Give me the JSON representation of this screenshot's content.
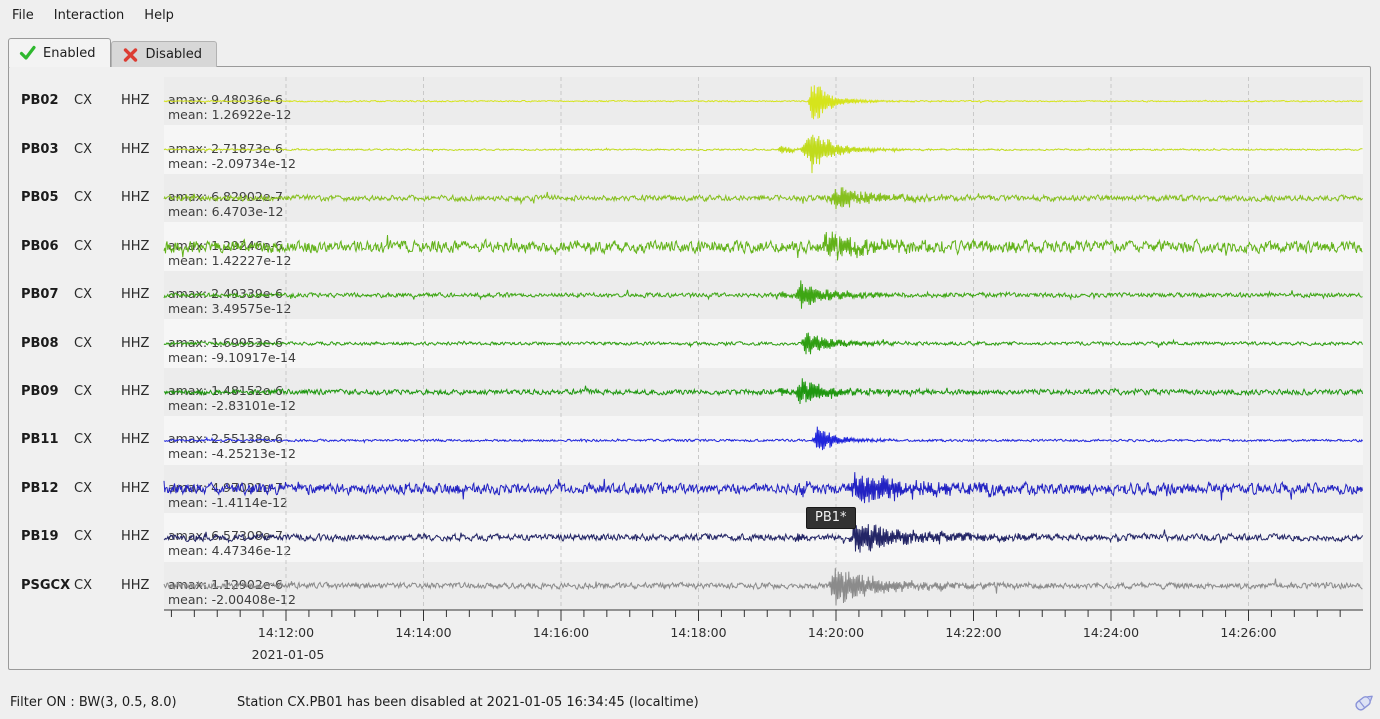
{
  "menubar": {
    "items": [
      "File",
      "Interaction",
      "Help"
    ]
  },
  "tabs": [
    {
      "label": "Enabled",
      "icon": "check-icon",
      "active": true
    },
    {
      "label": "Disabled",
      "icon": "x-icon",
      "active": false
    }
  ],
  "traces": [
    {
      "station": "PB02",
      "network": "CX",
      "channel": "HHZ",
      "amax_label": "amax: 9.48036e-6",
      "mean_label": "mean: 1.26922e-12",
      "color": "#d6e41c",
      "wave": {
        "noise": 0.5,
        "amp": 27,
        "peak": 0.541,
        "rise": 6,
        "decay": 14,
        "coda": 0.06,
        "pre": 0,
        "preoff": 0
      }
    },
    {
      "station": "PB03",
      "network": "CX",
      "channel": "HHZ",
      "amax_label": "amax: 2.71873e-6",
      "mean_label": "mean: -2.09734e-12",
      "color": "#c0db1c",
      "wave": {
        "noise": 0.6,
        "amp": 24,
        "peak": 0.54,
        "rise": 14,
        "decay": 18,
        "coda": 0.08,
        "pre": 0.25,
        "preoff": 30
      }
    },
    {
      "station": "PB05",
      "network": "CX",
      "channel": "HHZ",
      "amax_label": "amax: 6.82902e-7",
      "mean_label": "mean: 6.4703e-12",
      "color": "#86c01e",
      "wave": {
        "noise": 2.2,
        "amp": 12,
        "peak": 0.561,
        "rise": 14,
        "decay": 30,
        "coda": 0.15,
        "pre": 0,
        "preoff": 0
      }
    },
    {
      "station": "PB06",
      "network": "CX",
      "channel": "HHZ",
      "amax_label": "amax: 1.29246e-6",
      "mean_label": "mean: 1.42227e-12",
      "color": "#62b219",
      "wave": {
        "noise": 4.6,
        "amp": 13,
        "peak": 0.555,
        "rise": 20,
        "decay": 35,
        "coda": 0.2,
        "pre": 0,
        "preoff": 0
      }
    },
    {
      "station": "PB07",
      "network": "CX",
      "channel": "HHZ",
      "amax_label": "amax: 2.49339e-6",
      "mean_label": "mean: 3.49575e-12",
      "color": "#3ea614",
      "wave": {
        "noise": 1.7,
        "amp": 14,
        "peak": 0.531,
        "rise": 9,
        "decay": 25,
        "coda": 0.12,
        "pre": 0.3,
        "preoff": 18
      }
    },
    {
      "station": "PB08",
      "network": "CX",
      "channel": "HHZ",
      "amax_label": "amax: 1.69953e-6",
      "mean_label": "mean: -9.10917e-14",
      "color": "#2f9e12",
      "wave": {
        "noise": 1.3,
        "amp": 13,
        "peak": 0.536,
        "rise": 8,
        "decay": 22,
        "coda": 0.1,
        "pre": 0,
        "preoff": 0
      }
    },
    {
      "station": "PB09",
      "network": "CX",
      "channel": "HHZ",
      "amax_label": "amax: 1.48152e-6",
      "mean_label": "mean: -2.83101e-12",
      "color": "#1f9710",
      "wave": {
        "noise": 2.1,
        "amp": 15,
        "peak": 0.531,
        "rise": 9,
        "decay": 22,
        "coda": 0.12,
        "pre": 0.3,
        "preoff": 20
      }
    },
    {
      "station": "PB11",
      "network": "CX",
      "channel": "HHZ",
      "amax_label": "amax: 2.55138e-6",
      "mean_label": "mean: -4.25213e-12",
      "color": "#2126dc",
      "wave": {
        "noise": 0.9,
        "amp": 15,
        "peak": 0.545,
        "rise": 7,
        "decay": 16,
        "coda": 0.08,
        "pre": 0,
        "preoff": 0
      }
    },
    {
      "station": "PB12",
      "network": "CX",
      "channel": "HHZ",
      "amax_label": "amax: 4.97021e-7",
      "mean_label": "mean: -1.4114e-12",
      "color": "#2323c3",
      "wave": {
        "noise": 4.2,
        "amp": 17,
        "peak": 0.578,
        "rise": 14,
        "decay": 40,
        "coda": 0.25,
        "pre": 0.25,
        "preoff": 55
      }
    },
    {
      "station": "PB19",
      "network": "CX",
      "channel": "HHZ",
      "amax_label": "amax: 6.57308e-7",
      "mean_label": "mean: 4.47346e-12",
      "color": "#232566",
      "wave": {
        "noise": 2.6,
        "amp": 19,
        "peak": 0.578,
        "rise": 12,
        "decay": 35,
        "coda": 0.2,
        "pre": 0.25,
        "preoff": 60
      }
    },
    {
      "station": "PSGCX",
      "network": "CX",
      "channel": "HHZ",
      "amax_label": "amax: 1.12902e-6",
      "mean_label": "mean: -2.00408e-12",
      "color": "#8b8b8b",
      "wave": {
        "noise": 2.3,
        "amp": 21,
        "peak": 0.56,
        "rise": 10,
        "decay": 30,
        "coda": 0.18,
        "pre": 0,
        "preoff": 0
      }
    }
  ],
  "axis": {
    "tick_labels": [
      "14:12:00",
      "14:14:00",
      "14:16:00",
      "14:18:00",
      "14:20:00",
      "14:22:00",
      "14:24:00",
      "14:26:00"
    ],
    "date_label": "2021-01-05"
  },
  "tooltip": {
    "text": "PB1*"
  },
  "statusbar": {
    "filter_text": "Filter ON : BW(3, 0.5, 8.0)",
    "message_text": "Station CX.PB01 has been disabled at 2021-01-05 16:34:45 (localtime)"
  },
  "colors": {
    "stripe_even": "#ececec",
    "stripe_odd": "#f6f6f6",
    "gridline": "#c9c9c9",
    "axis": "#333333",
    "tab_check": "#2eb82e",
    "tab_x": "#dc3c32"
  }
}
